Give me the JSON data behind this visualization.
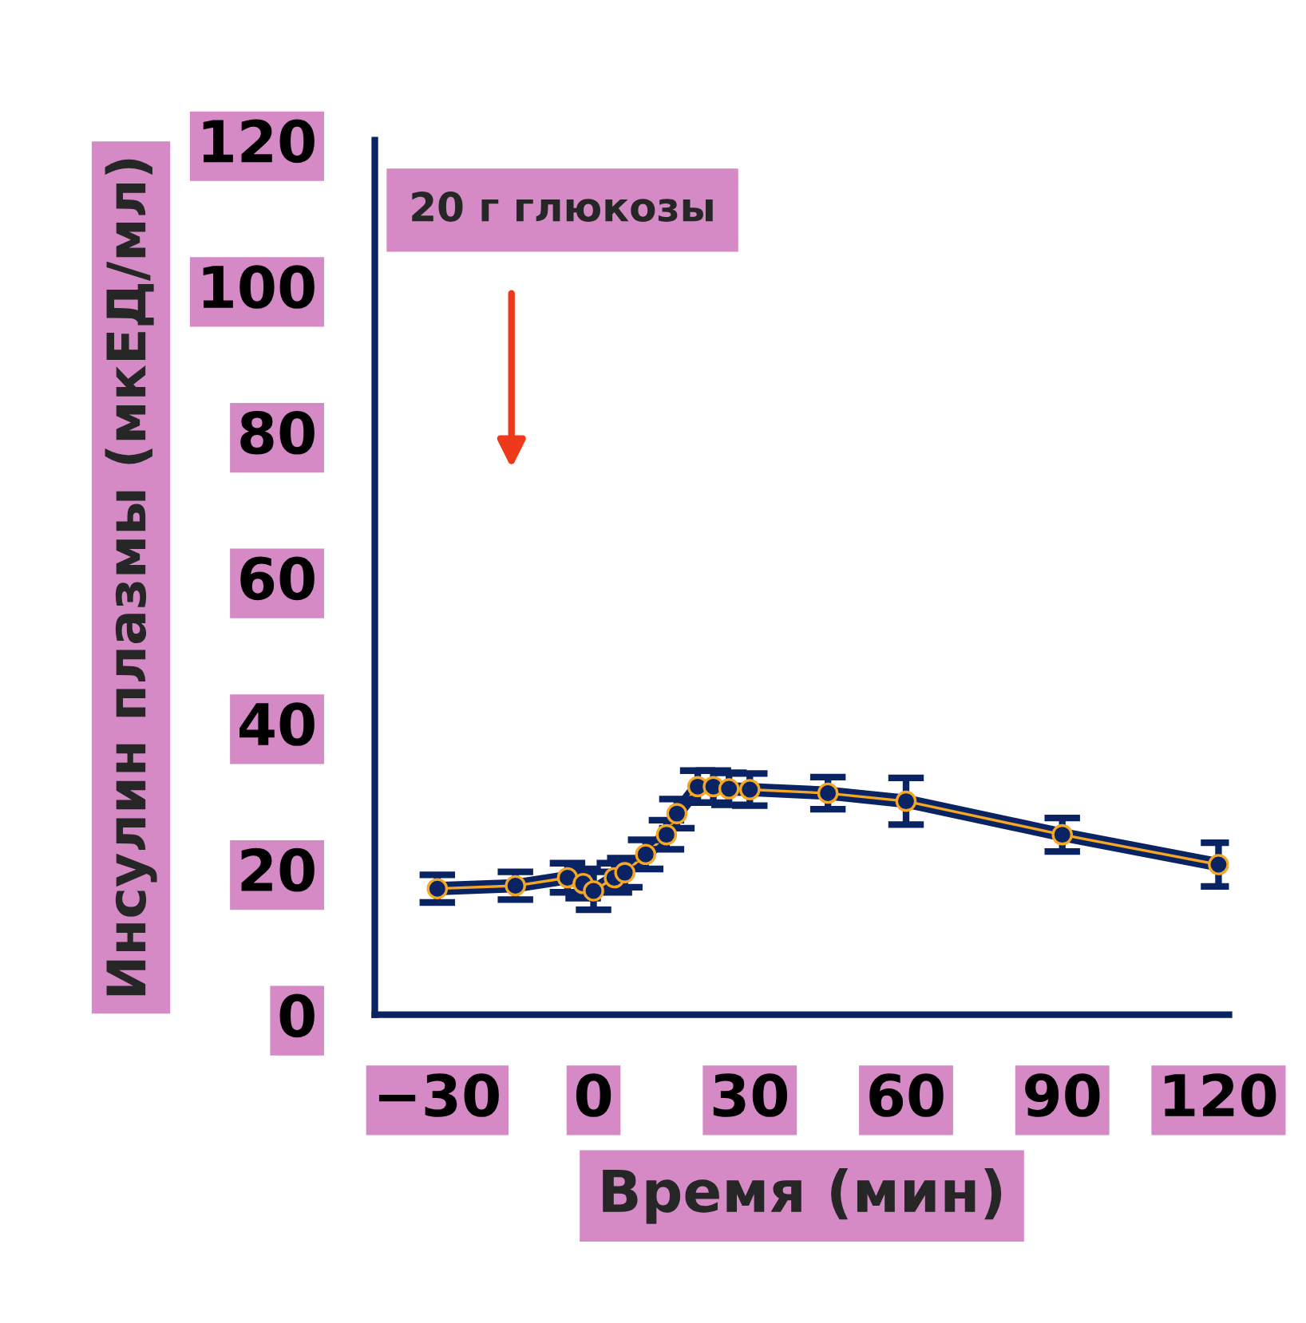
{
  "chart_data": {
    "type": "line",
    "ylabel": "Инсулин плазмы (мкЕД/мл)",
    "xlabel": "Время (мин)",
    "annotations": [
      "20 г глюкозы"
    ],
    "x": [
      -30,
      -15,
      -5,
      -2,
      0,
      4,
      6,
      10,
      14,
      16,
      20,
      23,
      26,
      30,
      45,
      60,
      90,
      120
    ],
    "series": [
      {
        "color": "#0a2463",
        "values": [
          17.3,
          17.7,
          18.8,
          18,
          17,
          18.8,
          19.5,
          22,
          24.7,
          27.6,
          31.3,
          31.3,
          31,
          30.9,
          30.4,
          29.3,
          24.7,
          20.6
        ],
        "errors": [
          1.9,
          1.9,
          2,
          2,
          2.6,
          2,
          2,
          2,
          2,
          2,
          2.2,
          2.2,
          2.2,
          2.2,
          2.2,
          3.2,
          2.3,
          3
        ]
      }
    ],
    "marker": "circle",
    "xlim": [
      -42,
      122
    ],
    "ylim": [
      0,
      120
    ],
    "xticks": [
      -30,
      0,
      30,
      60,
      90,
      120
    ],
    "yticks": [
      0,
      20,
      40,
      60,
      80,
      100,
      120
    ],
    "grid": false,
    "legend": false
  }
}
